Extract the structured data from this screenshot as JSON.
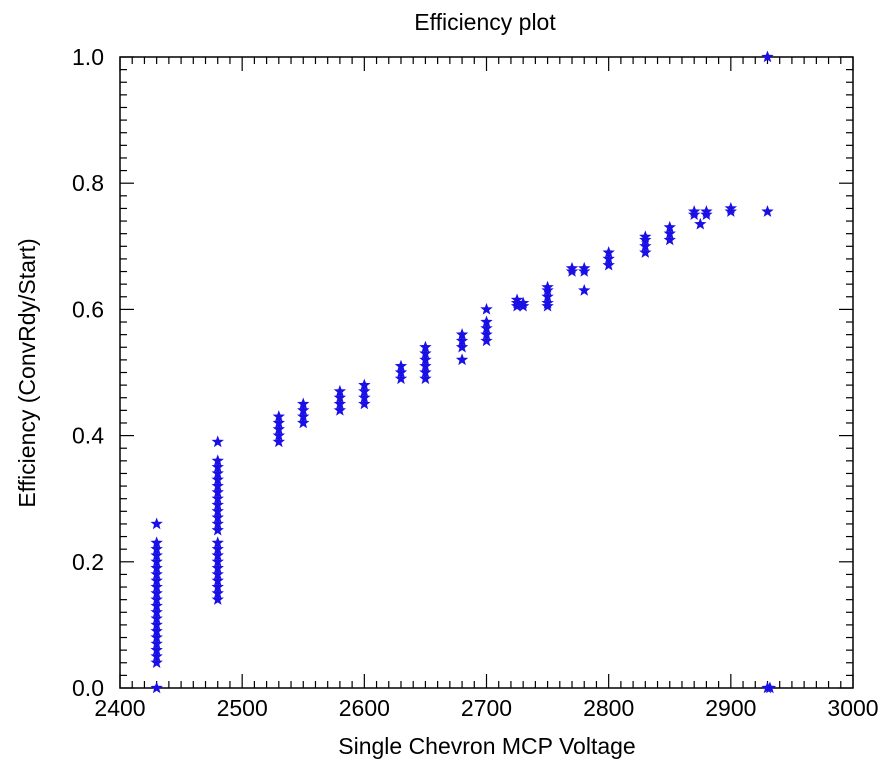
{
  "chart_data": {
    "type": "scatter",
    "title": "Efficiency plot",
    "xlabel": "Single Chevron MCP Voltage",
    "ylabel": "Efficiency (ConvRdy/Start)",
    "xlim": [
      2400,
      3000
    ],
    "ylim": [
      0.0,
      1.0
    ],
    "xticks": [
      "2400",
      "2500",
      "2600",
      "2700",
      "2800",
      "2900",
      "3000"
    ],
    "yticks": [
      "0.0",
      "0.2",
      "0.4",
      "0.6",
      "0.8",
      "1.0"
    ],
    "grid": false,
    "marker": "star",
    "color": "#1a10e6",
    "points": [
      [
        2430,
        0.26
      ],
      [
        2430,
        0.23
      ],
      [
        2430,
        0.22
      ],
      [
        2430,
        0.21
      ],
      [
        2430,
        0.2
      ],
      [
        2430,
        0.19
      ],
      [
        2430,
        0.18
      ],
      [
        2430,
        0.17
      ],
      [
        2430,
        0.16
      ],
      [
        2430,
        0.15
      ],
      [
        2430,
        0.14
      ],
      [
        2430,
        0.13
      ],
      [
        2430,
        0.12
      ],
      [
        2430,
        0.11
      ],
      [
        2430,
        0.1
      ],
      [
        2430,
        0.09
      ],
      [
        2430,
        0.08
      ],
      [
        2430,
        0.07
      ],
      [
        2430,
        0.06
      ],
      [
        2430,
        0.05
      ],
      [
        2430,
        0.04
      ],
      [
        2430,
        0.0
      ],
      [
        2480,
        0.39
      ],
      [
        2480,
        0.36
      ],
      [
        2480,
        0.35
      ],
      [
        2480,
        0.34
      ],
      [
        2480,
        0.33
      ],
      [
        2480,
        0.32
      ],
      [
        2480,
        0.31
      ],
      [
        2480,
        0.3
      ],
      [
        2480,
        0.29
      ],
      [
        2480,
        0.28
      ],
      [
        2480,
        0.27
      ],
      [
        2480,
        0.26
      ],
      [
        2480,
        0.25
      ],
      [
        2480,
        0.23
      ],
      [
        2480,
        0.22
      ],
      [
        2480,
        0.21
      ],
      [
        2480,
        0.2
      ],
      [
        2480,
        0.19
      ],
      [
        2480,
        0.18
      ],
      [
        2480,
        0.17
      ],
      [
        2480,
        0.16
      ],
      [
        2480,
        0.15
      ],
      [
        2480,
        0.14
      ],
      [
        2530,
        0.43
      ],
      [
        2530,
        0.42
      ],
      [
        2530,
        0.41
      ],
      [
        2530,
        0.4
      ],
      [
        2530,
        0.39
      ],
      [
        2550,
        0.45
      ],
      [
        2550,
        0.44
      ],
      [
        2550,
        0.43
      ],
      [
        2550,
        0.42
      ],
      [
        2580,
        0.47
      ],
      [
        2580,
        0.46
      ],
      [
        2580,
        0.45
      ],
      [
        2580,
        0.44
      ],
      [
        2600,
        0.48
      ],
      [
        2600,
        0.47
      ],
      [
        2600,
        0.46
      ],
      [
        2600,
        0.45
      ],
      [
        2630,
        0.51
      ],
      [
        2630,
        0.5
      ],
      [
        2630,
        0.49
      ],
      [
        2650,
        0.54
      ],
      [
        2650,
        0.53
      ],
      [
        2650,
        0.52
      ],
      [
        2650,
        0.51
      ],
      [
        2650,
        0.5
      ],
      [
        2650,
        0.49
      ],
      [
        2680,
        0.56
      ],
      [
        2680,
        0.55
      ],
      [
        2680,
        0.54
      ],
      [
        2680,
        0.52
      ],
      [
        2700,
        0.6
      ],
      [
        2700,
        0.58
      ],
      [
        2700,
        0.57
      ],
      [
        2700,
        0.56
      ],
      [
        2700,
        0.55
      ],
      [
        2725,
        0.615
      ],
      [
        2725,
        0.61
      ],
      [
        2725,
        0.605
      ],
      [
        2730,
        0.61
      ],
      [
        2730,
        0.605
      ],
      [
        2750,
        0.635
      ],
      [
        2750,
        0.63
      ],
      [
        2750,
        0.62
      ],
      [
        2750,
        0.61
      ],
      [
        2750,
        0.605
      ],
      [
        2770,
        0.665
      ],
      [
        2770,
        0.66
      ],
      [
        2780,
        0.665
      ],
      [
        2780,
        0.66
      ],
      [
        2780,
        0.63
      ],
      [
        2800,
        0.69
      ],
      [
        2800,
        0.68
      ],
      [
        2800,
        0.67
      ],
      [
        2830,
        0.715
      ],
      [
        2830,
        0.71
      ],
      [
        2830,
        0.7
      ],
      [
        2830,
        0.69
      ],
      [
        2850,
        0.73
      ],
      [
        2850,
        0.72
      ],
      [
        2850,
        0.71
      ],
      [
        2870,
        0.755
      ],
      [
        2870,
        0.75
      ],
      [
        2875,
        0.735
      ],
      [
        2880,
        0.755
      ],
      [
        2880,
        0.75
      ],
      [
        2900,
        0.76
      ],
      [
        2900,
        0.755
      ],
      [
        2930,
        0.755
      ],
      [
        2930,
        1.0
      ],
      [
        2930,
        0.0
      ],
      [
        2932,
        0.0
      ]
    ]
  }
}
